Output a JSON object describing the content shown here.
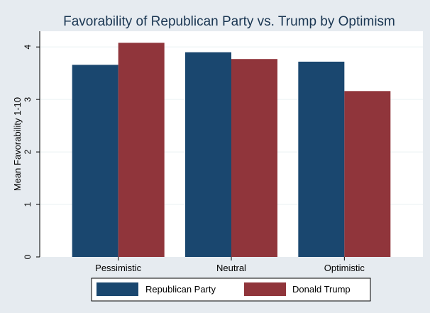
{
  "chart_data": {
    "type": "bar",
    "title": "Favorability of Republican Party vs. Trump by Optimism",
    "xlabel": "",
    "ylabel": "Mean Favorability 1-10",
    "categories": [
      "Pessimistic",
      "Neutral",
      "Optimistic"
    ],
    "series": [
      {
        "name": "Republican Party",
        "color": "#1a476f",
        "values": [
          3.66,
          3.9,
          3.72
        ]
      },
      {
        "name": "Donald Trump",
        "color": "#90353b",
        "values": [
          4.08,
          3.77,
          3.16
        ]
      }
    ],
    "ylim": [
      0,
      4.3
    ],
    "yticks": [
      0,
      1,
      2,
      3,
      4
    ],
    "grid": true,
    "legend_position": "bottom"
  },
  "colors": {
    "background": "#e6ebf0",
    "plot_background": "#ffffff",
    "gridline": "#eaf2f3",
    "title": "#1a3652"
  }
}
